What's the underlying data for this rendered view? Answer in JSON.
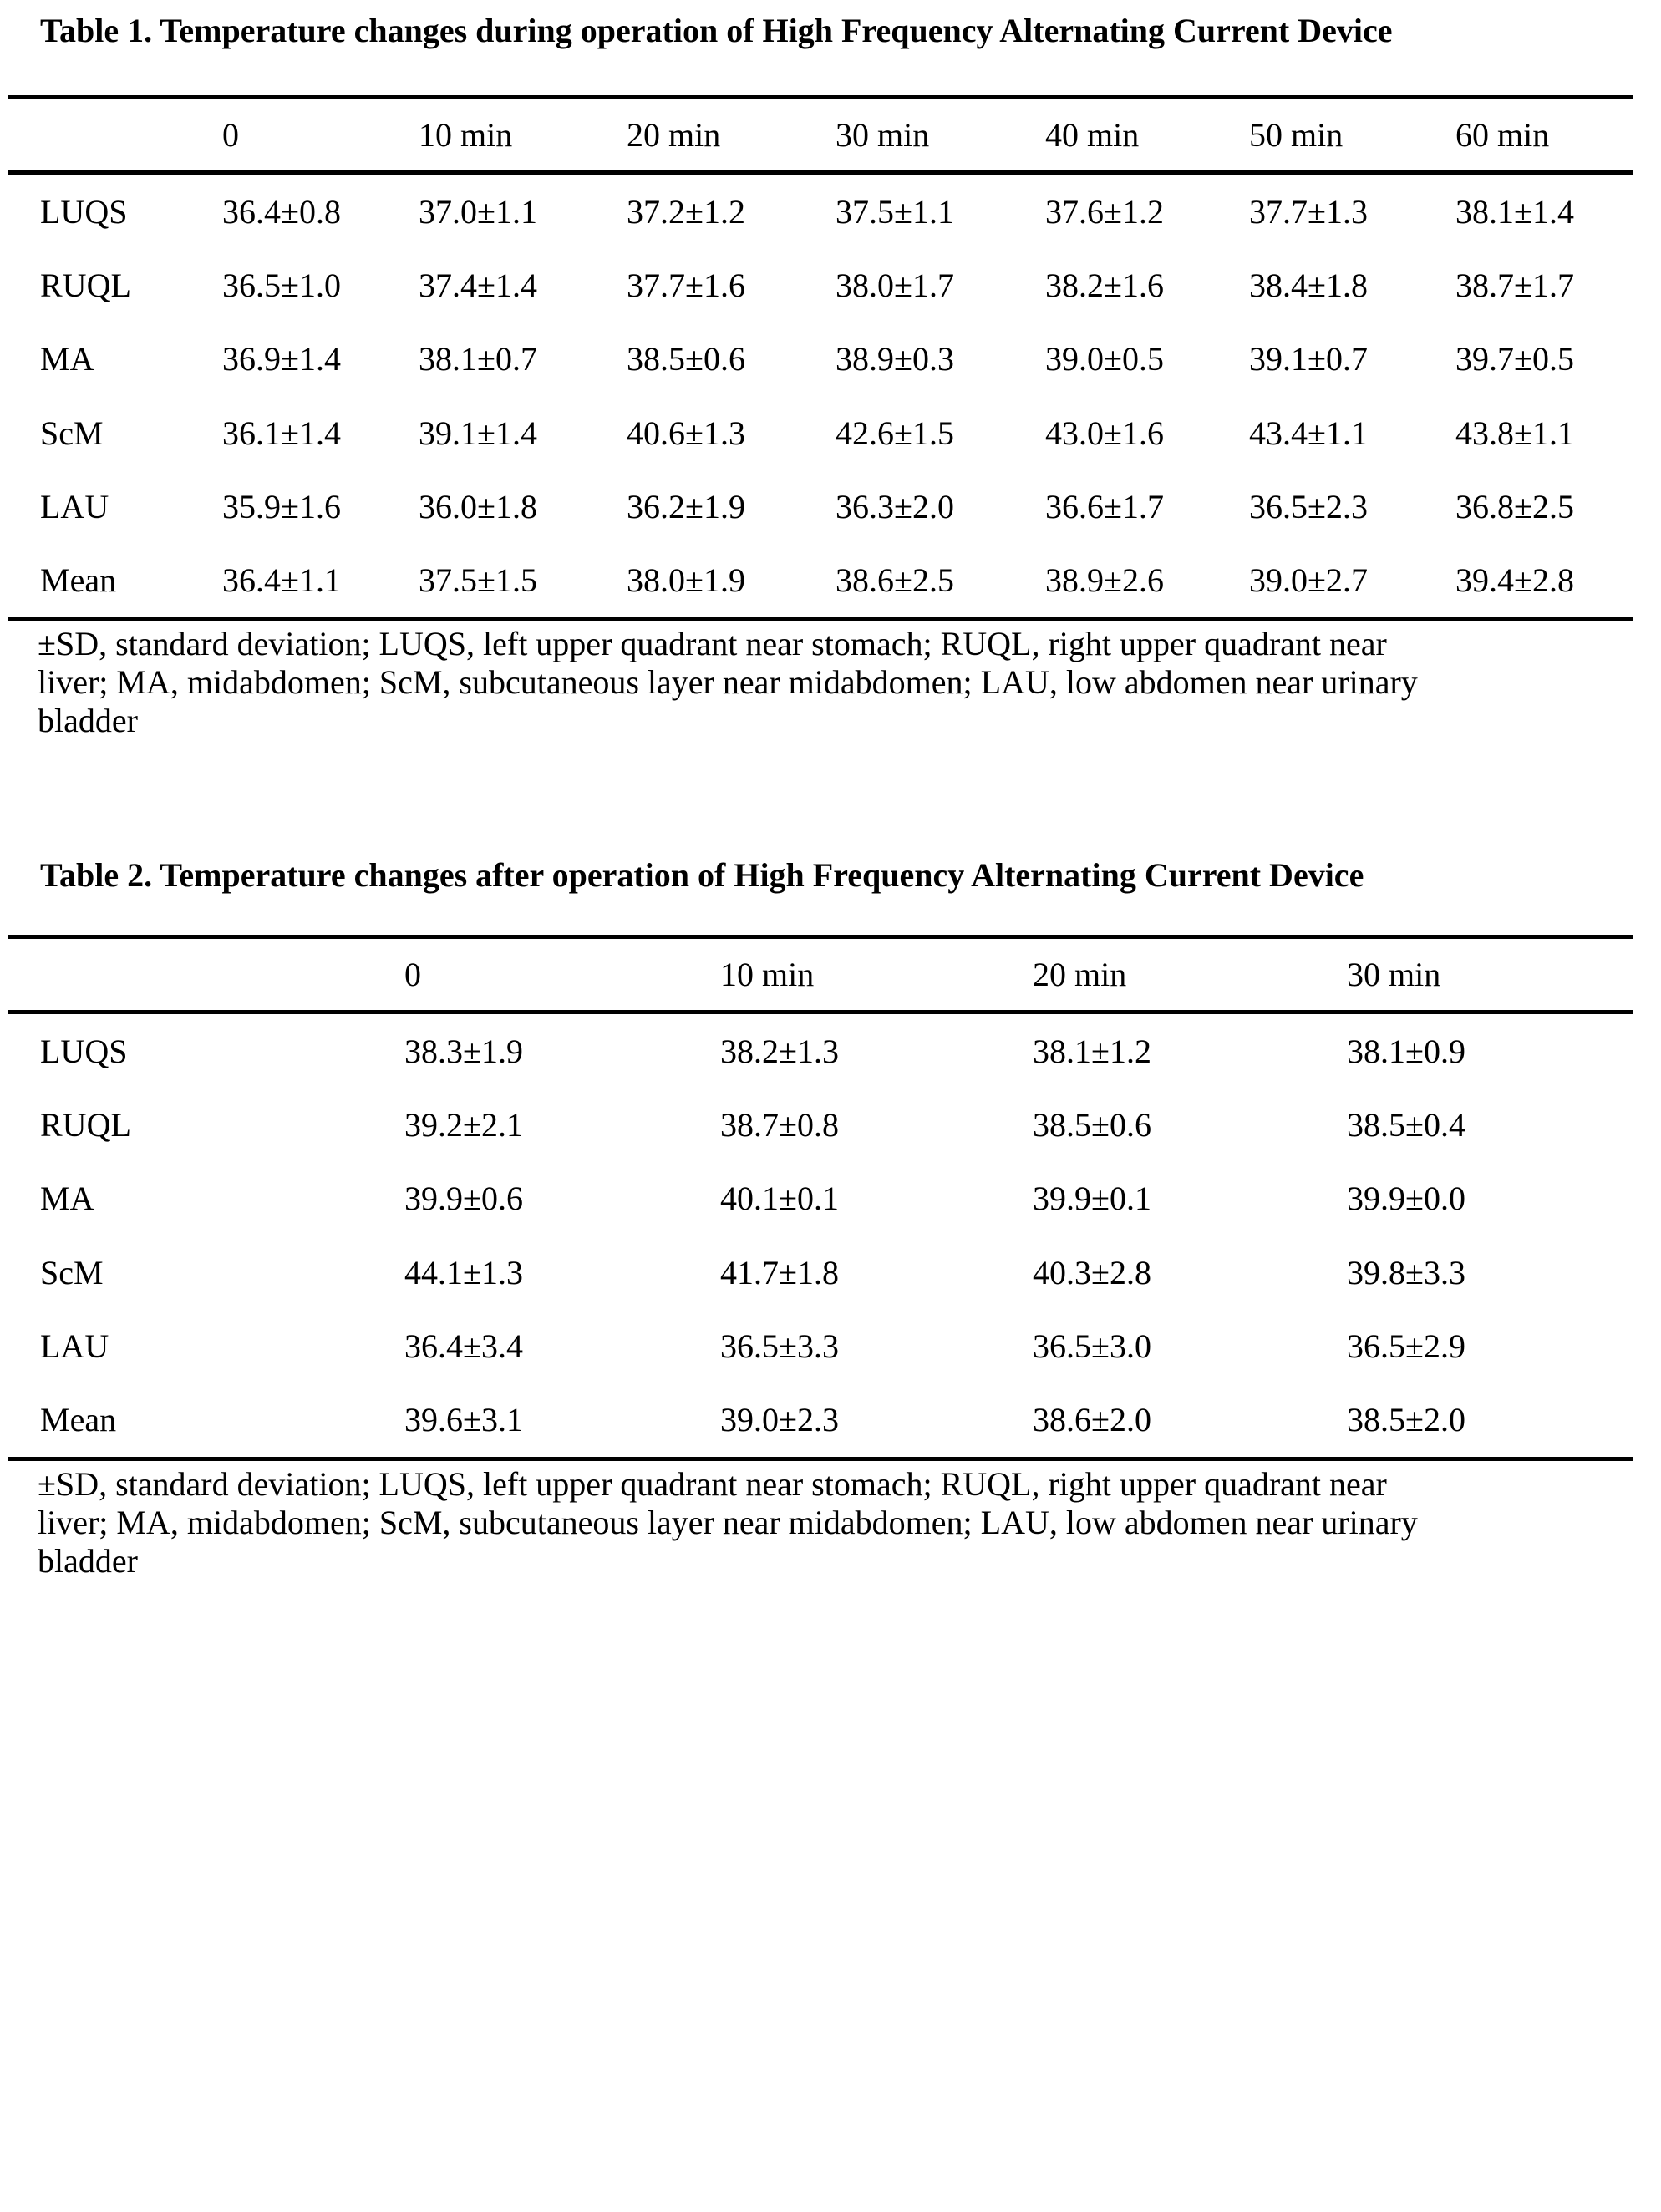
{
  "page": {
    "background": "#ffffff",
    "text_color": "#000000",
    "rule_color": "#000000"
  },
  "tables": [
    {
      "title": "Table 1. Temperature changes during operation of High Frequency Alternating Current Device",
      "columns": [
        "",
        "0",
        "10 min",
        "20 min",
        "30 min",
        "40 min",
        "50 min",
        "60 min"
      ],
      "rows": [
        {
          "label": "LUQS",
          "values": [
            "36.4±0.8",
            "37.0±1.1",
            "37.2±1.2",
            "37.5±1.1",
            "37.6±1.2",
            "37.7±1.3",
            "38.1±1.4"
          ]
        },
        {
          "label": "RUQL",
          "values": [
            "36.5±1.0",
            "37.4±1.4",
            "37.7±1.6",
            "38.0±1.7",
            "38.2±1.6",
            "38.4±1.8",
            "38.7±1.7"
          ]
        },
        {
          "label": "MA",
          "values": [
            "36.9±1.4",
            "38.1±0.7",
            "38.5±0.6",
            "38.9±0.3",
            "39.0±0.5",
            "39.1±0.7",
            "39.7±0.5"
          ]
        },
        {
          "label": "ScM",
          "values": [
            "36.1±1.4",
            "39.1±1.4",
            "40.6±1.3",
            "42.6±1.5",
            "43.0±1.6",
            "43.4±1.1",
            "43.8±1.1"
          ]
        },
        {
          "label": "LAU",
          "values": [
            "35.9±1.6",
            "36.0±1.8",
            "36.2±1.9",
            "36.3±2.0",
            "36.6±1.7",
            "36.5±2.3",
            "36.8±2.5"
          ]
        },
        {
          "label": "Mean",
          "values": [
            "36.4±1.1",
            "37.5±1.5",
            "38.0±1.9",
            "38.6±2.5",
            "38.9±2.6",
            "39.0±2.7",
            "39.4±2.8"
          ]
        }
      ],
      "footnote_lines": [
        "±SD, standard deviation; LUQS, left upper quadrant near stomach; RUQL, right upper quadrant near",
        "liver; MA, midabdomen; ScM, subcutaneous layer near midabdomen; LAU, low abdomen near urinary",
        "bladder"
      ]
    },
    {
      "title": "Table 2. Temperature changes after operation of High Frequency Alternating Current Device",
      "columns": [
        "",
        "0",
        "10 min",
        "20 min",
        "30 min"
      ],
      "rows": [
        {
          "label": "LUQS",
          "values": [
            "38.3±1.9",
            "38.2±1.3",
            "38.1±1.2",
            "38.1±0.9"
          ]
        },
        {
          "label": "RUQL",
          "values": [
            "39.2±2.1",
            "38.7±0.8",
            "38.5±0.6",
            "38.5±0.4"
          ]
        },
        {
          "label": "MA",
          "values": [
            "39.9±0.6",
            "40.1±0.1",
            "39.9±0.1",
            "39.9±0.0"
          ]
        },
        {
          "label": "ScM",
          "values": [
            "44.1±1.3",
            "41.7±1.8",
            "40.3±2.8",
            "39.8±3.3"
          ]
        },
        {
          "label": "LAU",
          "values": [
            "36.4±3.4",
            "36.5±3.3",
            "36.5±3.0",
            "36.5±2.9"
          ]
        },
        {
          "label": "Mean",
          "values": [
            "39.6±3.1",
            "39.0±2.3",
            "38.6±2.0",
            "38.5±2.0"
          ]
        }
      ],
      "footnote_lines": [
        "±SD, standard deviation; LUQS, left upper quadrant near stomach; RUQL, right upper quadrant near",
        "liver; MA, midabdomen; ScM, subcutaneous layer near midabdomen; LAU, low abdomen near urinary",
        "bladder"
      ]
    }
  ]
}
